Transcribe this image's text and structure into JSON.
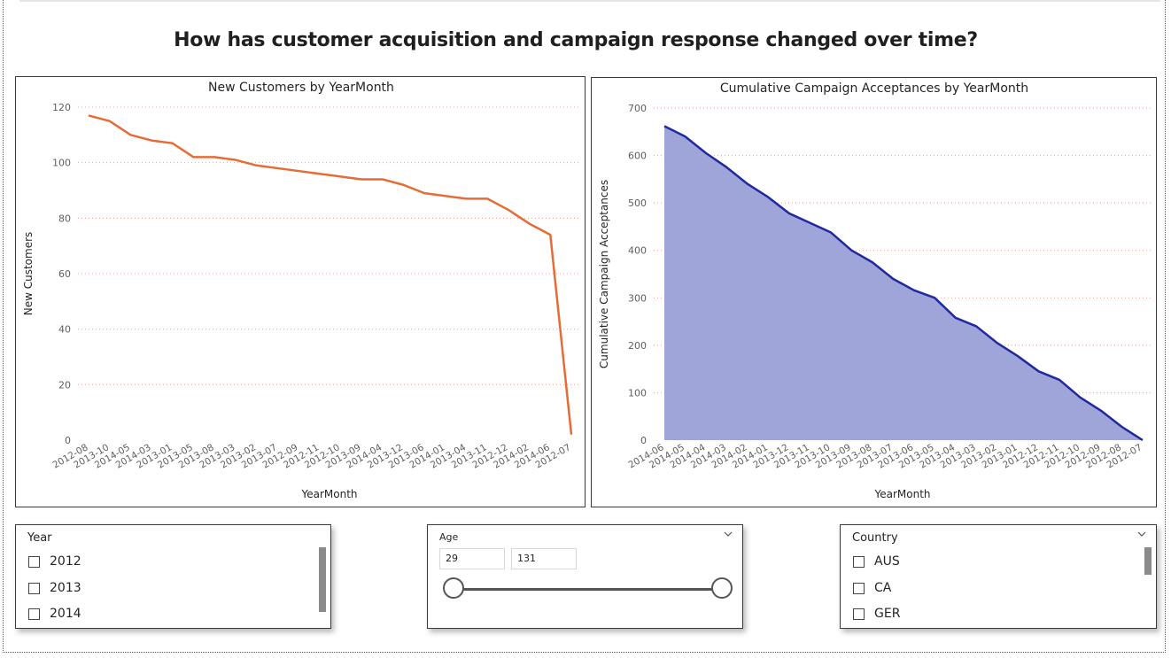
{
  "report": {
    "title": "How has customer acquisition and campaign response changed over time?"
  },
  "colors": {
    "line_chart": "#e66c37",
    "area_line": "#1f2a9e",
    "area_fill": "#a0a5d9",
    "gridline": "#e8a39a"
  },
  "charts": {
    "left": {
      "title": "New Customers by YearMonth",
      "xlabel": "YearMonth",
      "ylabel": "New Customers"
    },
    "right": {
      "title": "Cumulative Campaign Acceptances by YearMonth",
      "xlabel": "YearMonth",
      "ylabel": "Cumulative Campaign Acceptances"
    }
  },
  "chart_data": [
    {
      "type": "line",
      "title": "New Customers by YearMonth",
      "xlabel": "YearMonth",
      "ylabel": "New Customers",
      "ylim": [
        0,
        120
      ],
      "yticks": [
        0,
        20,
        40,
        60,
        80,
        100,
        120
      ],
      "grid": true,
      "x": [
        "2012-08",
        "2013-10",
        "2014-05",
        "2014-03",
        "2013-01",
        "2013-05",
        "2013-08",
        "2013-03",
        "2013-02",
        "2013-07",
        "2012-09",
        "2012-11",
        "2012-10",
        "2013-09",
        "2014-04",
        "2013-12",
        "2013-06",
        "2014-01",
        "2013-04",
        "2013-11",
        "2012-12",
        "2014-02",
        "2014-06",
        "2012-07"
      ],
      "series": [
        {
          "values": [
            117,
            115,
            110,
            108,
            107,
            102,
            102,
            101,
            99,
            98,
            97,
            96,
            95,
            94,
            94,
            92,
            89,
            88,
            87,
            87,
            83,
            78,
            74,
            2
          ]
        }
      ]
    },
    {
      "type": "area",
      "title": "Cumulative Campaign Acceptances by YearMonth",
      "xlabel": "YearMonth",
      "ylabel": "Cumulative Campaign Acceptances",
      "ylim": [
        0,
        700
      ],
      "yticks": [
        0,
        100,
        200,
        300,
        400,
        500,
        600,
        700
      ],
      "grid": true,
      "x": [
        "2014-06",
        "2014-05",
        "2014-04",
        "2014-03",
        "2014-02",
        "2014-01",
        "2013-12",
        "2013-11",
        "2013-10",
        "2013-09",
        "2013-08",
        "2013-07",
        "2013-06",
        "2013-05",
        "2013-04",
        "2013-03",
        "2013-02",
        "2013-01",
        "2012-12",
        "2012-11",
        "2012-10",
        "2012-09",
        "2012-08",
        "2012-07"
      ],
      "series": [
        {
          "values": [
            662,
            640,
            605,
            575,
            540,
            512,
            478,
            458,
            438,
            400,
            375,
            340,
            316,
            300,
            258,
            240,
            205,
            177,
            145,
            127,
            90,
            62,
            28,
            0
          ]
        }
      ]
    }
  ],
  "slicers": {
    "year": {
      "header": "Year",
      "items": [
        "2012",
        "2013",
        "2014"
      ]
    },
    "age": {
      "header": "Age",
      "min_value": "29",
      "max_value": "131"
    },
    "country": {
      "header": "Country",
      "items": [
        "AUS",
        "CA",
        "GER"
      ]
    }
  }
}
